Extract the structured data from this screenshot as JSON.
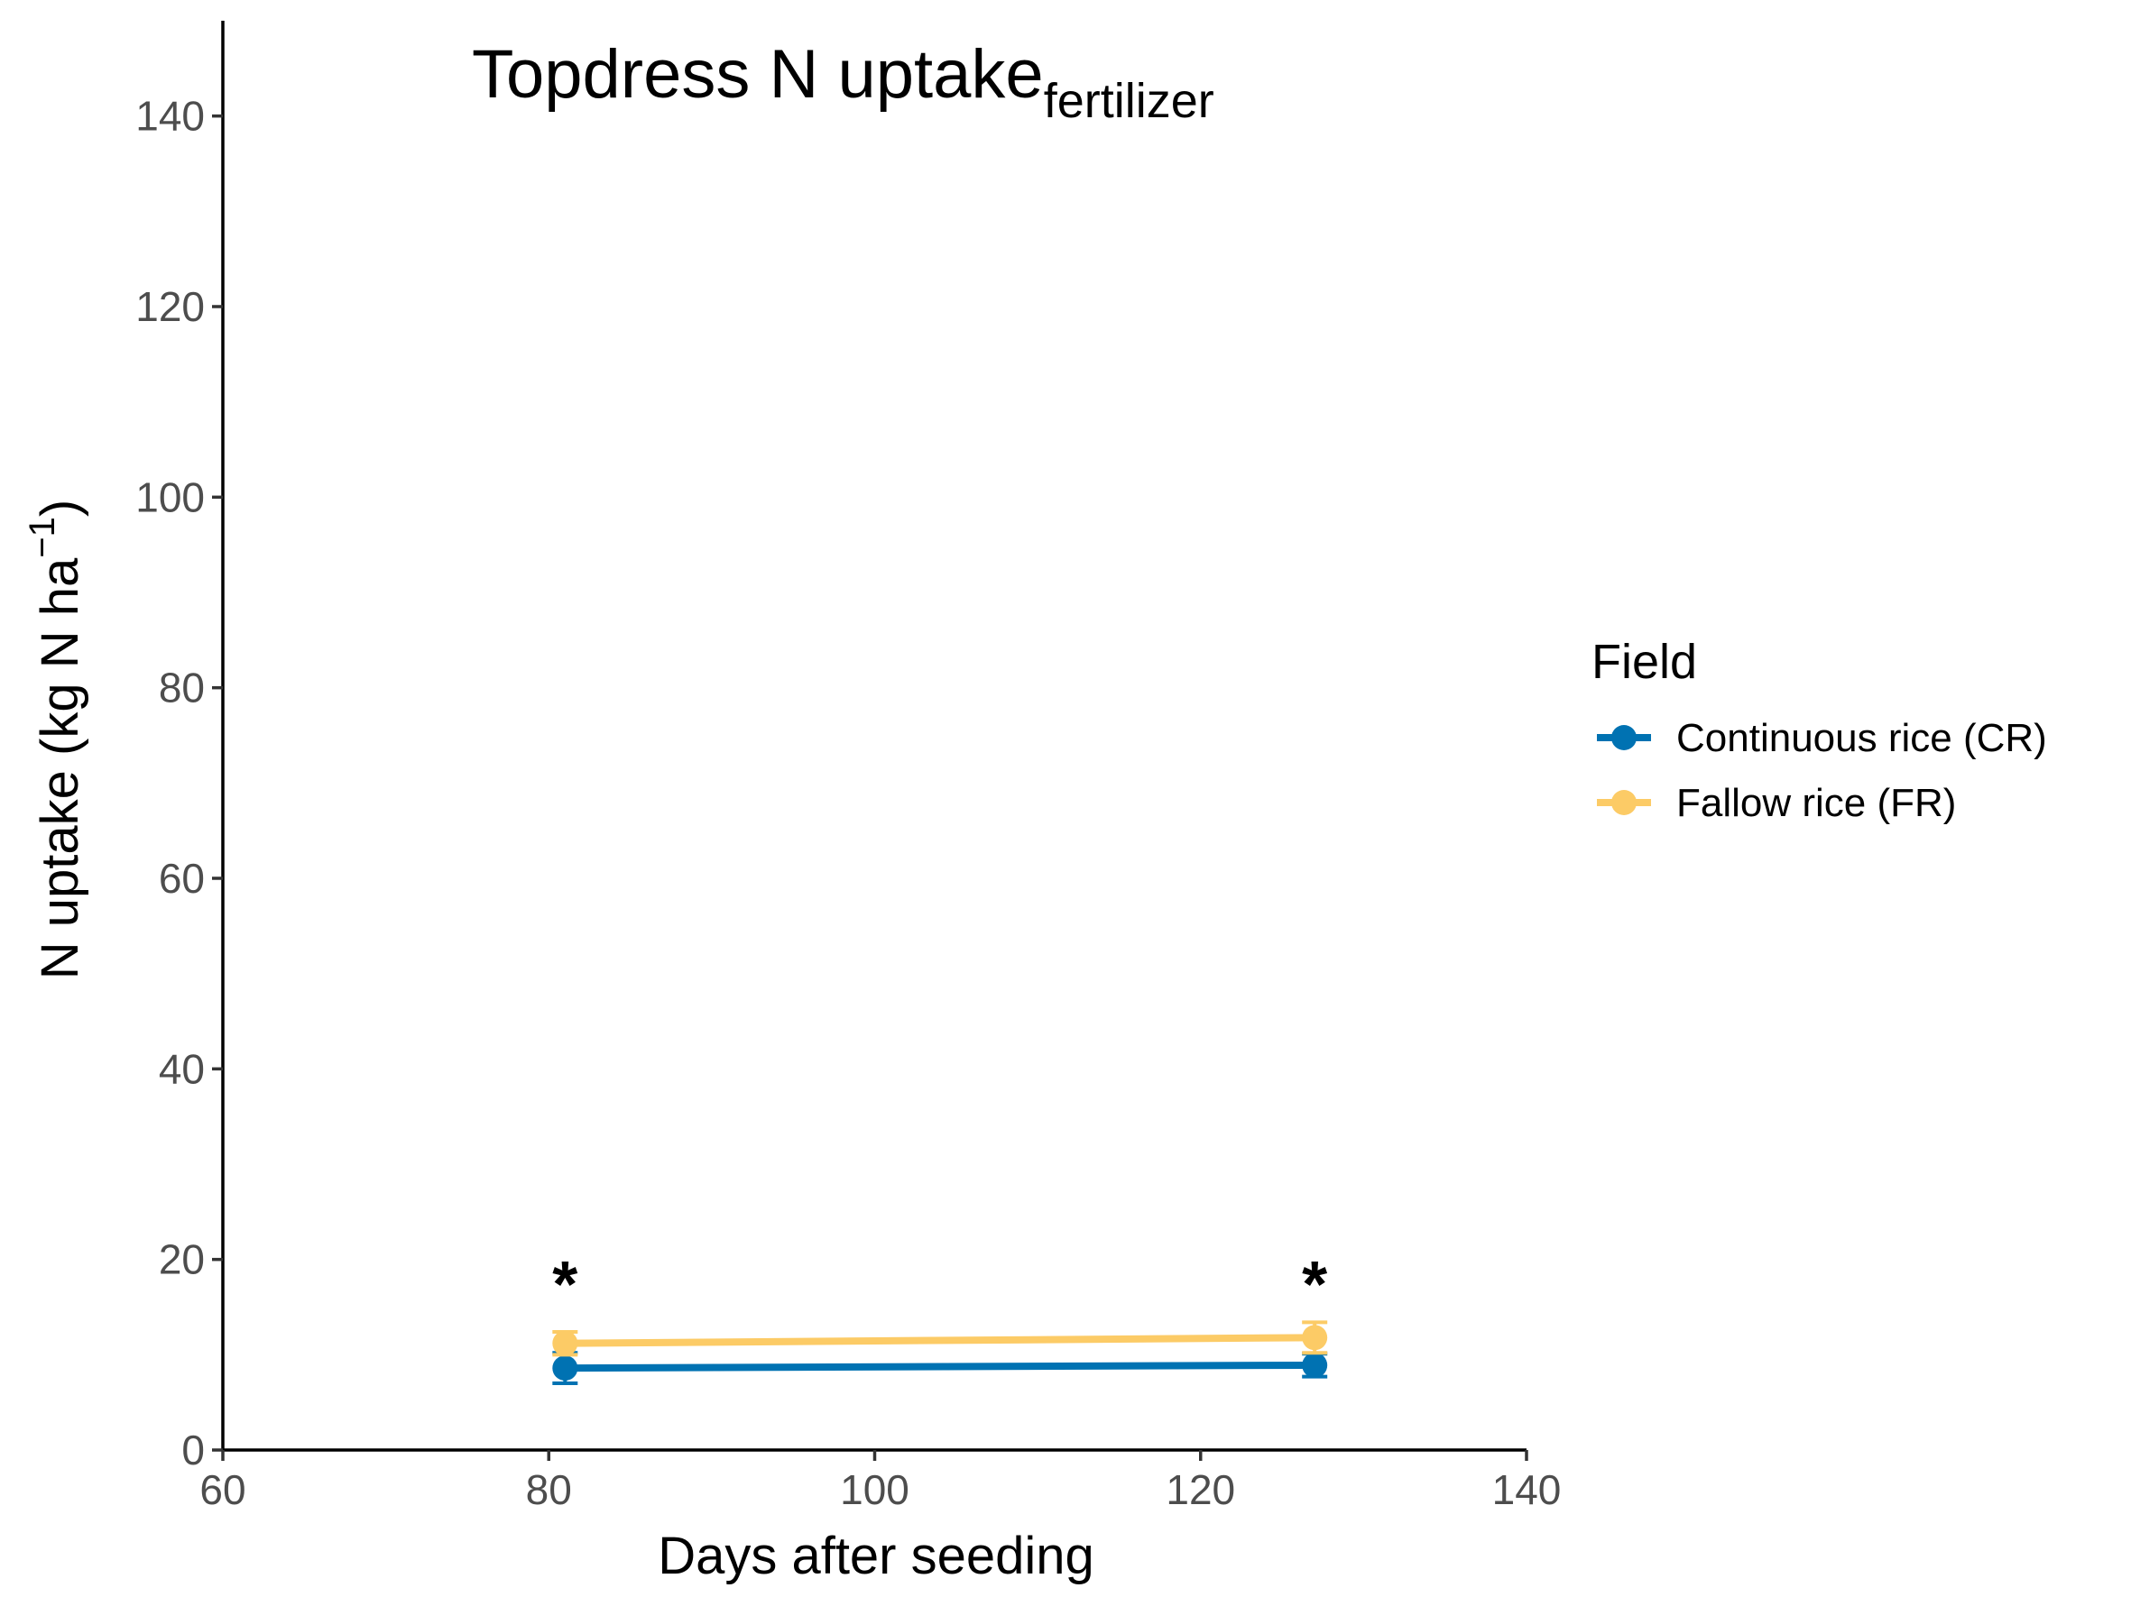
{
  "chart_data": {
    "type": "line",
    "title": "Topdress N uptake",
    "title_subscript": "fertilizer",
    "xlabel": "Days after seeding",
    "ylabel": "N uptake (kg N ha",
    "ylabel_superscript": "−1",
    "ylabel_close": ")",
    "xlim": [
      60,
      140
    ],
    "ylim": [
      0,
      150
    ],
    "x_ticks": [
      60,
      80,
      100,
      120,
      140
    ],
    "y_ticks": [
      0,
      20,
      40,
      60,
      80,
      100,
      120,
      140
    ],
    "grid": false,
    "legend_title": "Field",
    "legend_position": "right",
    "series": [
      {
        "name": "Continuous rice (CR)",
        "color": "#0072b2",
        "x": [
          81,
          127
        ],
        "y": [
          8.6,
          8.9
        ],
        "error": [
          1.6,
          1.2
        ]
      },
      {
        "name": "Fallow rice (FR)",
        "color": "#fccb66",
        "x": [
          81,
          127
        ],
        "y": [
          11.2,
          11.8
        ],
        "error": [
          1.2,
          1.6
        ]
      }
    ],
    "annotations": [
      {
        "x": 81,
        "y": 19,
        "text": "*"
      },
      {
        "x": 127,
        "y": 19,
        "text": "*"
      }
    ]
  }
}
